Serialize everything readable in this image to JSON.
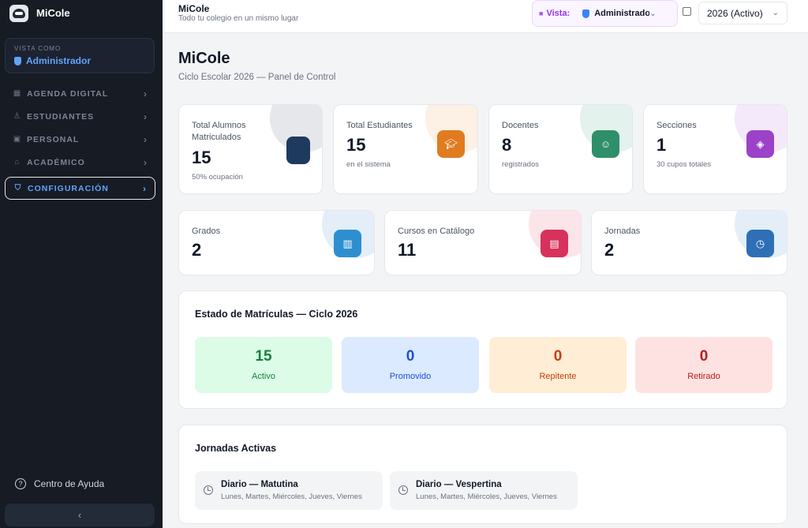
{
  "app": {
    "name": "MiCole"
  },
  "sidebar": {
    "view_as_caption": "VISTA COMO",
    "view_as_role": "Administrador",
    "items": [
      {
        "label": "AGENDA DIGITAL",
        "icon": "calendar-icon"
      },
      {
        "label": "ESTUDIANTES",
        "icon": "users-icon"
      },
      {
        "label": "PERSONAL",
        "icon": "briefcase-icon"
      },
      {
        "label": "ACADÉMICO",
        "icon": "graduation-cap-icon"
      },
      {
        "label": "CONFIGURACIÓN",
        "icon": "shield-icon",
        "active": true
      }
    ],
    "help": "Centro de Ayuda",
    "collapse_icon": "chevron-left-icon"
  },
  "topbar": {
    "title": "MiCole",
    "subtitle": "Todo tu colegio en un mismo lugar",
    "vista_label": "Vista:",
    "vista_value": "Administrador",
    "year_value": "2026 (Activo)"
  },
  "page": {
    "title": "MiCole",
    "subtitle": "Ciclo Escolar 2026 — Panel de Control"
  },
  "stats_row1": [
    {
      "label": "Total Alumnos Matriculados",
      "value": "15",
      "note": "50% ocupación",
      "icon": "square-icon",
      "color": "#1e3a5f"
    },
    {
      "label": "Total Estudiantes",
      "value": "15",
      "note": "en el sistema",
      "icon": "graduation-cap-icon",
      "color": "#e07b20"
    },
    {
      "label": "Docentes",
      "value": "8",
      "note": "registrados",
      "icon": "users-icon",
      "color": "#2f8f6a"
    },
    {
      "label": "Secciones",
      "value": "1",
      "note": "30 cupos totales",
      "icon": "layers-icon",
      "color": "#9b42c9"
    }
  ],
  "stats_row2": [
    {
      "label": "Grados",
      "value": "2",
      "icon": "book-icon",
      "color": "#2d8fd0"
    },
    {
      "label": "Cursos en Catálogo",
      "value": "11",
      "icon": "clipboard-icon",
      "color": "#d8315b"
    },
    {
      "label": "Jornadas",
      "value": "2",
      "icon": "clock-icon",
      "color": "#2f6fb5"
    }
  ],
  "enrollment": {
    "title": "Estado de Matrículas — Ciclo 2026",
    "items": [
      {
        "value": "15",
        "label": "Activo"
      },
      {
        "value": "0",
        "label": "Promovido"
      },
      {
        "value": "0",
        "label": "Repitente"
      },
      {
        "value": "0",
        "label": "Retirado"
      }
    ]
  },
  "shifts": {
    "title": "Jornadas Activas",
    "items": [
      {
        "name": "Diario — Matutina",
        "days": "Lunes, Martes, Miércoles, Jueves, Viernes"
      },
      {
        "name": "Diario — Vespertina",
        "days": "Lunes, Martes, Miércoles, Jueves, Viernes"
      }
    ]
  }
}
